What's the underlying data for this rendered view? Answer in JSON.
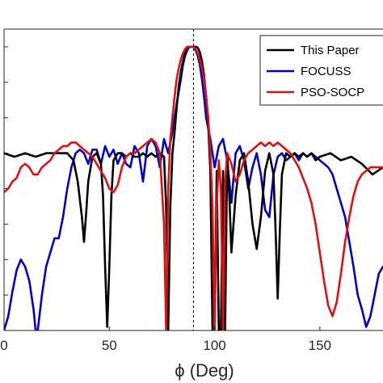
{
  "chart_data": {
    "type": "line",
    "title": "",
    "xlabel": "ϕ (Deg)",
    "ylabel": "",
    "xlim": [
      0,
      180
    ],
    "ylim": [
      -80,
      5
    ],
    "x_ticks": [
      0,
      50,
      100,
      150
    ],
    "x_tick_labels": [
      "0",
      "50",
      "100",
      "150"
    ],
    "grid": false,
    "legend_position": "top-right",
    "reference_line": {
      "x": 90,
      "style": "dashed"
    },
    "series": [
      {
        "name": "This Paper",
        "color": "#000000",
        "x": [
          0,
          5,
          10,
          15,
          20,
          25,
          30,
          33,
          35,
          37,
          38,
          39,
          40,
          42,
          44,
          46,
          47,
          48,
          49,
          50,
          51,
          52,
          54,
          56,
          58,
          60,
          62,
          64,
          66,
          68,
          70,
          72,
          74,
          76,
          77,
          78,
          79,
          80,
          81,
          82,
          83,
          84,
          85,
          86,
          87,
          88,
          89,
          90,
          91,
          92,
          93,
          94,
          95,
          96,
          97,
          98,
          99,
          100,
          101,
          102,
          103,
          104,
          105,
          106,
          107,
          108,
          110,
          112,
          114,
          116,
          118,
          120,
          122,
          124,
          126,
          128,
          129,
          130,
          131,
          132,
          134,
          136,
          138,
          140,
          142,
          144,
          146,
          148,
          150,
          155,
          160,
          165,
          170,
          175,
          180
        ],
        "values": [
          -30,
          -31,
          -30,
          -31,
          -30,
          -30,
          -30,
          -32,
          -38,
          -48,
          -55,
          -47,
          -38,
          -31,
          -30,
          -33,
          -42,
          -62,
          -79,
          -62,
          -42,
          -32,
          -30,
          -30,
          -31,
          -30,
          -31,
          -31,
          -30,
          -31,
          -30,
          -31,
          -30,
          -31,
          -45,
          -80,
          -45,
          -30,
          -24,
          -17,
          -11,
          -7,
          -4,
          -1.5,
          -0.2,
          0,
          0,
          0,
          0,
          -0.2,
          -1.5,
          -4,
          -8,
          -14,
          -22,
          -35,
          -80,
          -80,
          -35,
          -80,
          -80,
          -35,
          -80,
          -30,
          -42,
          -58,
          -42,
          -32,
          -30,
          -38,
          -50,
          -57,
          -48,
          -35,
          -30,
          -36,
          -52,
          -71,
          -52,
          -36,
          -30,
          -31,
          -30,
          -31,
          -30,
          -31,
          -30,
          -32,
          -31,
          -30,
          -32,
          -31,
          -33,
          -36,
          -34
        ]
      },
      {
        "name": "FOCUSS",
        "color": "#0000c8",
        "x": [
          0,
          2,
          4,
          6,
          8,
          10,
          12,
          14,
          15,
          16,
          18,
          20,
          22,
          24,
          26,
          28,
          30,
          32,
          34,
          36,
          38,
          40,
          42,
          44,
          46,
          48,
          50,
          52,
          54,
          56,
          58,
          60,
          62,
          64,
          66,
          68,
          70,
          72,
          74,
          76,
          78,
          80,
          82,
          84,
          85,
          86,
          87,
          88,
          89,
          90,
          91,
          92,
          93,
          94,
          95,
          96,
          98,
          100,
          102,
          104,
          106,
          108,
          110,
          112,
          114,
          116,
          118,
          120,
          122,
          124,
          126,
          128,
          130,
          132,
          134,
          136,
          138,
          140,
          142,
          144,
          146,
          148,
          150,
          152,
          154,
          156,
          158,
          160,
          162,
          164,
          166,
          168,
          170,
          172,
          174,
          176,
          178,
          180
        ],
        "values": [
          -80,
          -76,
          -69,
          -63,
          -60,
          -62,
          -66,
          -74,
          -80,
          -80,
          -70,
          -62,
          -58,
          -54,
          -54,
          -48,
          -40,
          -34,
          -30,
          -29,
          -30,
          -33,
          -29,
          -29,
          -33,
          -28,
          -31,
          -29,
          -33,
          -30,
          -33,
          -34,
          -28,
          -30,
          -38,
          -28,
          -26,
          -28,
          -34,
          -26,
          -30,
          -24,
          -16,
          -9,
          -5,
          -2.5,
          -1,
          0,
          0,
          0,
          -1,
          -2.5,
          -5,
          -9,
          -14,
          -20,
          -26,
          -34,
          -28,
          -26,
          -32,
          -44,
          -30,
          -28,
          -32,
          -40,
          -34,
          -30,
          -36,
          -46,
          -48,
          -36,
          -31,
          -30,
          -32,
          -31,
          -30,
          -32,
          -30,
          -31,
          -30,
          -31,
          -32,
          -33,
          -34,
          -36,
          -40,
          -44,
          -48,
          -55,
          -62,
          -70,
          -74,
          -79,
          -76,
          -70,
          -64,
          -62
        ]
      },
      {
        "name": "PSO-SOCP",
        "color": "#e01010",
        "x": [
          0,
          2,
          4,
          6,
          8,
          10,
          12,
          14,
          16,
          18,
          20,
          22,
          24,
          26,
          28,
          30,
          32,
          34,
          36,
          38,
          40,
          42,
          44,
          46,
          48,
          50,
          52,
          54,
          56,
          58,
          60,
          62,
          64,
          66,
          68,
          70,
          72,
          74,
          76,
          77,
          78,
          79,
          80,
          81,
          82,
          83,
          84,
          85,
          86,
          87,
          88,
          89,
          90,
          91,
          92,
          93,
          94,
          95,
          96,
          97,
          98,
          99,
          100,
          101,
          102,
          103,
          104,
          105,
          106,
          108,
          110,
          112,
          114,
          116,
          118,
          120,
          122,
          124,
          126,
          128,
          130,
          132,
          134,
          136,
          138,
          140,
          142,
          144,
          146,
          148,
          150,
          152,
          154,
          156,
          158,
          160,
          162,
          164,
          166,
          168,
          170,
          172,
          174,
          176,
          178,
          180
        ],
        "values": [
          -41,
          -40,
          -38,
          -37,
          -34,
          -33,
          -34,
          -36,
          -36,
          -34,
          -33,
          -32,
          -30,
          -29,
          -28,
          -28,
          -27,
          -27,
          -28,
          -29,
          -30,
          -31,
          -33,
          -35,
          -37,
          -40,
          -41,
          -39,
          -34,
          -31,
          -30,
          -30,
          -29,
          -28,
          -27,
          -26,
          -27,
          -30,
          -50,
          -80,
          -40,
          -26,
          -20,
          -14,
          -9,
          -6,
          -3.5,
          -1.8,
          -0.6,
          0,
          0,
          0,
          0,
          -0.6,
          -1.8,
          -3.5,
          -6,
          -9,
          -14,
          -20,
          -30,
          -45,
          -80,
          -45,
          -32,
          -40,
          -80,
          -38,
          -30,
          -33,
          -38,
          -36,
          -32,
          -30,
          -29,
          -28,
          -27,
          -28,
          -27,
          -28,
          -27,
          -28,
          -29,
          -30,
          -32,
          -34,
          -37,
          -40,
          -44,
          -50,
          -58,
          -66,
          -73,
          -76,
          -72,
          -64,
          -55,
          -48,
          -42,
          -38,
          -36,
          -35,
          -34,
          -34,
          -34,
          -34
        ]
      }
    ]
  }
}
